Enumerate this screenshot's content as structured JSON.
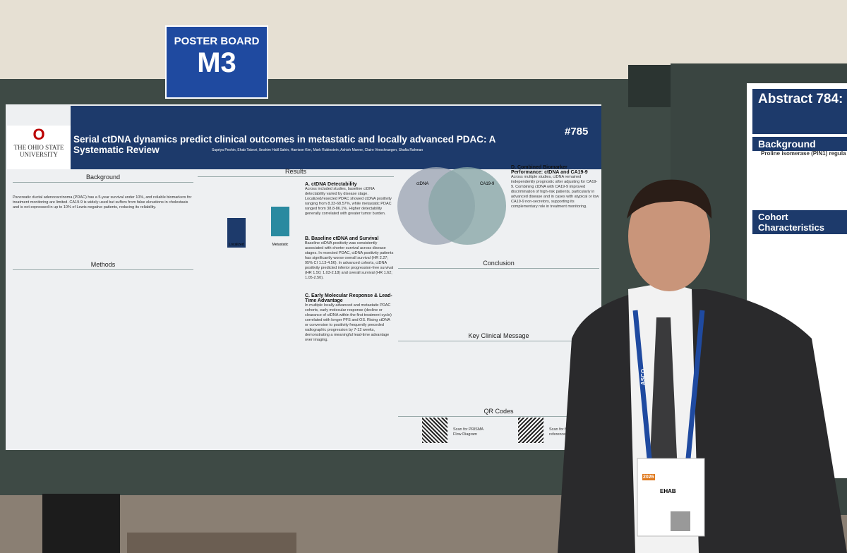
{
  "sign": {
    "label": "POSTER BOARD",
    "board": "M3"
  },
  "poster": {
    "university": "THE OHIO STATE UNIVERSITY",
    "title": "Serial ctDNA dynamics predict clinical outcomes in metastatic and locally advanced PDAC: A Systematic Review",
    "number": "#785",
    "authors": "Supriya Peshin, Ehab Takrori, Ibrahim Halil Sahin, Harrison Kim, Mark Rubinstein, Ashish Manne, Claire Verschraegen, Shafia Rahman",
    "sections": {
      "background": "Background",
      "methods": "Methods",
      "results": "Results",
      "conclusion": "Conclusion",
      "key_message": "Key Clinical Message",
      "qr": "QR Codes"
    },
    "background_text": "Pancreatic ductal adenocarcinoma (PDAC) has a 5-year survival under 10%, and reliable biomarkers for treatment monitoring are limited. CA19-9 is widely used but suffers from false elevations in cholestasis and is not expressed in up to 10% of Lewis-negative patients, reducing its reliability.",
    "subsections": {
      "a": "A. ctDNA Detectability",
      "b": "B. Baseline ctDNA and Survival",
      "c": "C. Early Molecular Response & Lead-Time Advantage",
      "d": "D. Combined Biomarker Performance: ctDNA and CA19-9"
    },
    "a_text": "Across included studies, baseline ctDNA detectability varied by disease stage. Localized/resected PDAC showed ctDNA positivity ranging from 8.33-68.57%, while metastatic PDAC ranged from 38.8-86.1%. Higher detectability generally correlated with greater tumor burden.",
    "b_text": "Baseline ctDNA positivity was consistently associated with shorter survival across disease stages. In resected PDAC, ctDNA positivity patients has significantly worse overall survival (HR 2.27; 95% CI 1.13-4.56). In advanced cohorts, ctDNA positivity predicted inferior progression-free survival (HR 1.50; 1.03-2.18) and overall survival (HR 1.62; 1.05-2.50).",
    "c_text": "In multiple locally advanced and metastatic PDAC cohorts, early molecular response (decline or clearance of ctDNA within the first treatment cycle) correlated with longer PFS and OS. Rising ctDNA or conversion to positivity frequently preceded radiographic progression by 7-12 weeks, demonstrating a meaningful lead-time advantage over imaging.",
    "d_text": "Across multiple studies, ctDNA remained independently prognostic after adjusting for CA19-9. Combining ctDNA with CA19-9 improved discrimination of high-risk patients, particularly in advanced disease and in cases with atypical or low CA19-9 non-secretors, supporting its complementary role in treatment monitoring.",
    "venn": {
      "left": "ctDNA",
      "right": "CA19-9"
    },
    "bar_labels": [
      "Localized",
      "Metastatic"
    ],
    "qr_labels": [
      "Scan for PRISMA Flow Diagram",
      "Scan for full reference list"
    ]
  },
  "right_poster": {
    "title": "Abstract 784:",
    "background": "Background",
    "cohort": "Cohort Characteristics",
    "bullet": "Proline isomerase (PIN1) regula"
  },
  "badge": {
    "name": "EHAB",
    "lanyard": "ASCO",
    "year": "2026"
  }
}
